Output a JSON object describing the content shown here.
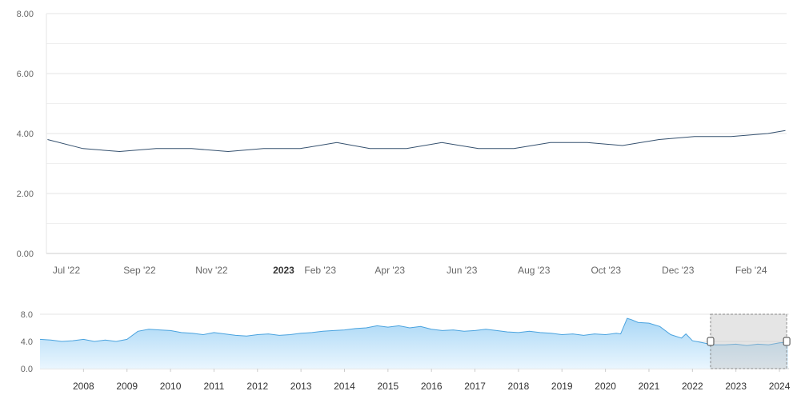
{
  "colors": {
    "main_line": "#34506e",
    "grid": "#e6e6e6",
    "axis": "#cccccc",
    "nav_line": "#4aa3df",
    "nav_fill_top": "#a9d7f6",
    "nav_fill_bottom": "#eaf6fe",
    "selection_fill": "#bfbfbf",
    "handle_stroke": "#444444"
  },
  "chart_data": [
    {
      "type": "line",
      "title": "",
      "xlabel": "",
      "ylabel": "",
      "ylim": [
        0,
        8
      ],
      "y_ticks": [
        "0.00",
        "2.00",
        "4.00",
        "6.00",
        "8.00"
      ],
      "x_ticks": [
        "Jul '22",
        "Sep '22",
        "Nov '22",
        "2023",
        "Feb '23",
        "Apr '23",
        "Jun '23",
        "Aug '23",
        "Oct '23",
        "Dec '23",
        "Feb '24"
      ],
      "grid": true,
      "x": [
        "2022-06-15",
        "2022-07-15",
        "2022-08-15",
        "2022-09-15",
        "2022-10-15",
        "2022-11-15",
        "2022-12-15",
        "2023-01-15",
        "2023-02-15",
        "2023-03-15",
        "2023-04-15",
        "2023-05-15",
        "2023-06-15",
        "2023-07-15",
        "2023-08-15",
        "2023-09-15",
        "2023-10-15",
        "2023-11-15",
        "2023-12-15",
        "2024-01-15",
        "2024-02-15",
        "2024-03-01"
      ],
      "values": [
        3.8,
        3.5,
        3.4,
        3.5,
        3.5,
        3.4,
        3.5,
        3.5,
        3.7,
        3.5,
        3.5,
        3.7,
        3.5,
        3.5,
        3.7,
        3.7,
        3.6,
        3.8,
        3.9,
        3.9,
        4.0,
        4.1
      ]
    },
    {
      "type": "area",
      "title": "",
      "ylim": [
        0,
        8
      ],
      "y_ticks": [
        "0.0",
        "4.0",
        "8.0"
      ],
      "x_ticks": [
        "2008",
        "2009",
        "2010",
        "2011",
        "2012",
        "2013",
        "2014",
        "2015",
        "2016",
        "2017",
        "2018",
        "2019",
        "2020",
        "2021",
        "2022",
        "2023",
        "2024"
      ],
      "selected_range": [
        "2022-06",
        "2024-03"
      ],
      "x": [
        2007.0,
        2007.25,
        2007.5,
        2007.75,
        2008.0,
        2008.25,
        2008.5,
        2008.75,
        2009.0,
        2009.25,
        2009.5,
        2009.75,
        2010.0,
        2010.25,
        2010.5,
        2010.75,
        2011.0,
        2011.25,
        2011.5,
        2011.75,
        2012.0,
        2012.25,
        2012.5,
        2012.75,
        2013.0,
        2013.25,
        2013.5,
        2013.75,
        2014.0,
        2014.25,
        2014.5,
        2014.75,
        2015.0,
        2015.25,
        2015.5,
        2015.75,
        2016.0,
        2016.25,
        2016.5,
        2016.75,
        2017.0,
        2017.25,
        2017.5,
        2017.75,
        2018.0,
        2018.25,
        2018.5,
        2018.75,
        2019.0,
        2019.25,
        2019.5,
        2019.75,
        2020.0,
        2020.25,
        2020.35,
        2020.5,
        2020.6,
        2020.75,
        2021.0,
        2021.25,
        2021.5,
        2021.75,
        2021.85,
        2022.0,
        2022.25,
        2022.5,
        2022.75,
        2023.0,
        2023.25,
        2023.5,
        2023.75,
        2024.0,
        2024.2
      ],
      "values": [
        4.3,
        4.2,
        4.0,
        4.1,
        4.3,
        4.0,
        4.2,
        4.0,
        4.3,
        5.5,
        5.8,
        5.7,
        5.6,
        5.3,
        5.2,
        5.0,
        5.3,
        5.1,
        4.9,
        4.8,
        5.0,
        5.1,
        4.9,
        5.0,
        5.2,
        5.3,
        5.5,
        5.6,
        5.7,
        5.9,
        6.0,
        6.3,
        6.1,
        6.3,
        6.0,
        6.2,
        5.8,
        5.6,
        5.7,
        5.5,
        5.6,
        5.8,
        5.6,
        5.4,
        5.3,
        5.5,
        5.3,
        5.2,
        5.0,
        5.1,
        4.9,
        5.1,
        5.0,
        5.2,
        5.1,
        7.4,
        7.2,
        6.8,
        6.7,
        6.2,
        5.0,
        4.5,
        5.1,
        4.1,
        3.8,
        3.5,
        3.5,
        3.6,
        3.4,
        3.6,
        3.5,
        3.8,
        3.9
      ]
    }
  ]
}
